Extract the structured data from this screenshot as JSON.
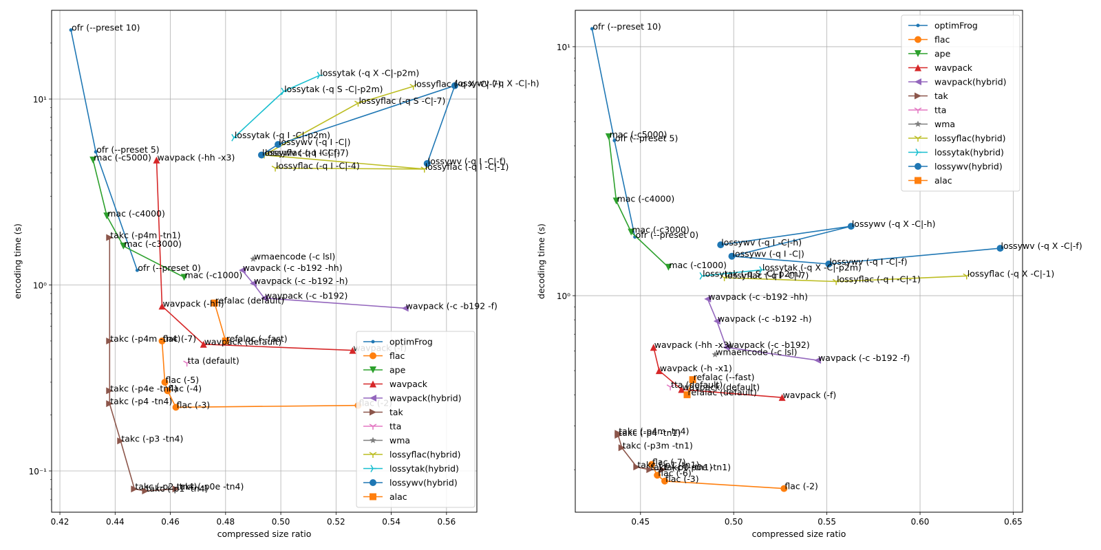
{
  "chart_data": [
    {
      "type": "line",
      "xlabel": "compressed size ratio",
      "ylabel": "encoding time (s)",
      "xscale": "linear",
      "yscale": "log",
      "xlim": [
        0.417,
        0.571
      ],
      "ylim": [
        0.06,
        30
      ],
      "xticks": [
        0.42,
        0.44,
        0.46,
        0.48,
        0.5,
        0.52,
        0.54,
        0.56
      ],
      "xtick_labels": [
        "0.42",
        "0.44",
        "0.46",
        "0.48",
        "0.50",
        "0.52",
        "0.54",
        "0.56"
      ],
      "yticks": [
        0.1,
        1,
        10
      ],
      "ytick_labels": [
        "10⁻¹",
        "10⁰",
        "10¹"
      ],
      "grid": true,
      "legend_position": "lower-right",
      "series": [
        {
          "name": "optimFrog",
          "color": "#1f77b4",
          "marker": "point",
          "points": [
            [
              0.424,
              23.5,
              "ofr (--preset 10)"
            ],
            [
              0.433,
              5.2,
              "ofr (--preset 5)"
            ],
            [
              0.448,
              1.2,
              "ofr (--preset 0)"
            ]
          ]
        },
        {
          "name": "flac",
          "color": "#ff7f0e",
          "marker": "circle",
          "points": [
            [
              0.457,
              0.5,
              "flac (-7)"
            ],
            [
              0.458,
              0.3,
              "flac (-5)"
            ],
            [
              0.459,
              0.27,
              "flac (-4)"
            ],
            [
              0.462,
              0.22,
              "flac (-3)"
            ],
            [
              0.528,
              0.225,
              "flac (-2)"
            ]
          ]
        },
        {
          "name": "ape",
          "color": "#2ca02c",
          "marker": "triangle-down",
          "points": [
            [
              0.432,
              4.7,
              "mac (-c5000)"
            ],
            [
              0.437,
              2.35,
              "mac (-c4000)"
            ],
            [
              0.443,
              1.62,
              "mac (-c3000)"
            ],
            [
              0.465,
              1.1,
              "mac (-c1000)"
            ]
          ]
        },
        {
          "name": "wavpack",
          "color": "#d62728",
          "marker": "triangle-up",
          "points": [
            [
              0.455,
              4.7,
              "wavpack (-hh -x3)"
            ],
            [
              0.457,
              0.77,
              "wavpack (-hh)"
            ],
            [
              0.472,
              0.48,
              "wavpack (default)"
            ],
            [
              0.526,
              0.445,
              "wavpack (-f)"
            ]
          ]
        },
        {
          "name": "wavpack(hybrid)",
          "color": "#9467bd",
          "marker": "triangle-left",
          "points": [
            [
              0.486,
              1.2,
              "wavpack (-c -b192 -hh)"
            ],
            [
              0.49,
              1.02,
              "wavpack (-c -b192 -h)"
            ],
            [
              0.494,
              0.85,
              "wavpack (-c -b192)"
            ],
            [
              0.545,
              0.75,
              "wavpack (-c -b192 -f)"
            ]
          ]
        },
        {
          "name": "tak",
          "color": "#8c564b",
          "marker": "triangle-right",
          "points": [
            [
              0.438,
              1.8,
              "takc (-p4m -tn1)"
            ],
            [
              0.438,
              0.5,
              "takc (-p4m -tn4)"
            ],
            [
              0.438,
              0.27,
              "takc (-p4e -tn4)"
            ],
            [
              0.438,
              0.23,
              "takc (-p4 -tn4)"
            ],
            [
              0.442,
              0.145,
              "takc (-p3 -tn4)"
            ],
            [
              0.447,
              0.08,
              "takc (-p2 -tn4)"
            ],
            [
              0.451,
              0.078,
              "takc (-p1 -tn4)"
            ],
            [
              0.462,
              0.08,
              "takc (-p0e -tn4)"
            ]
          ]
        },
        {
          "name": "tta",
          "color": "#e377c2",
          "marker": "tri-down",
          "points": [
            [
              0.466,
              0.38,
              "tta (default)"
            ]
          ]
        },
        {
          "name": "wma",
          "color": "#7f7f7f",
          "marker": "star",
          "points": [
            [
              0.49,
              1.38,
              "wmaencode (-c lsl)"
            ]
          ]
        },
        {
          "name": "lossyflac(hybrid)",
          "color": "#bcbd22",
          "marker": "tri-down",
          "points": [
            [
              0.498,
              4.25,
              "lossyflac (-q I -C|-4)"
            ],
            [
              0.552,
              4.2,
              "lossyflac (-q I -C|-1)"
            ],
            [
              0.494,
              5.0,
              "lossyflac (-q I -C|-7)"
            ],
            [
              0.528,
              9.5,
              "lossyflac (-q S -C|-7)"
            ],
            [
              0.548,
              11.7,
              "lossyflac (-q X -C|-7)"
            ]
          ]
        },
        {
          "name": "lossytak(hybrid)",
          "color": "#17becf",
          "marker": "tri-right",
          "points": [
            [
              0.483,
              6.2,
              "lossytak (-q I -C|-p2m)"
            ],
            [
              0.501,
              11.0,
              "lossytak (-q S -C|-p2m)"
            ],
            [
              0.514,
              13.4,
              "lossytak (-q X -C|-p2m)"
            ]
          ]
        },
        {
          "name": "lossywv(hybrid)",
          "color": "#1f77b4",
          "marker": "circle",
          "points": [
            [
              0.493,
              5.0,
              "lossywv (-q I -C|-f)"
            ],
            [
              0.499,
              5.7,
              "lossywv (-q I -C|)"
            ],
            [
              0.563,
              11.8,
              "lossywv (-q X -C|-h)"
            ],
            [
              0.553,
              4.5,
              "lossywv (-q I -C|-f)"
            ]
          ]
        },
        {
          "name": "alac",
          "color": "#ff7f0e",
          "marker": "square",
          "points": [
            [
              0.476,
              0.8,
              "refalac (default)"
            ],
            [
              0.48,
              0.5,
              "refalac (--fast)"
            ]
          ]
        }
      ]
    },
    {
      "type": "line",
      "xlabel": "compressed size ratio",
      "ylabel": "decoding time (s)",
      "xscale": "linear",
      "yscale": "log",
      "xlim": [
        0.415,
        0.655
      ],
      "ylim": [
        0.135,
        14
      ],
      "xticks": [
        0.45,
        0.5,
        0.55,
        0.6,
        0.65
      ],
      "xtick_labels": [
        "0.45",
        "0.50",
        "0.55",
        "0.60",
        "0.65"
      ],
      "yticks": [
        1,
        10
      ],
      "ytick_labels": [
        "10⁰",
        "10¹"
      ],
      "grid": true,
      "legend_position": "upper-right",
      "series": [
        {
          "name": "optimFrog",
          "color": "#1f77b4",
          "marker": "point",
          "points": [
            [
              0.424,
              11.8,
              "ofr (--preset 10)"
            ],
            [
              0.436,
              4.2,
              "ofr (--preset 5)"
            ],
            [
              0.447,
              1.72,
              "ofr (--preset 0)"
            ]
          ]
        },
        {
          "name": "flac",
          "color": "#ff7f0e",
          "marker": "circle",
          "points": [
            [
              0.456,
              0.21,
              "flac (-7)"
            ],
            [
              0.459,
              0.19,
              "flac (-6)"
            ],
            [
              0.463,
              0.18,
              "flac (-3)"
            ],
            [
              0.527,
              0.168,
              "flac (-2)"
            ]
          ]
        },
        {
          "name": "ape",
          "color": "#2ca02c",
          "marker": "triangle-down",
          "points": [
            [
              0.433,
              4.35,
              "mac (-c5000)"
            ],
            [
              0.437,
              2.4,
              "mac (-c4000)"
            ],
            [
              0.445,
              1.8,
              "mac (-c3000)"
            ],
            [
              0.465,
              1.3,
              "mac (-c1000)"
            ]
          ]
        },
        {
          "name": "wavpack",
          "color": "#d62728",
          "marker": "triangle-up",
          "points": [
            [
              0.457,
              0.62,
              "wavpack (-hh -x3)"
            ],
            [
              0.46,
              0.5,
              "wavpack (-h -x1)"
            ],
            [
              0.472,
              0.42,
              "wavpack (default)"
            ],
            [
              0.526,
              0.39,
              "wavpack (-f)"
            ]
          ]
        },
        {
          "name": "wavpack(hybrid)",
          "color": "#9467bd",
          "marker": "triangle-left",
          "points": [
            [
              0.486,
              0.97,
              "wavpack (-c -b192 -hh)"
            ],
            [
              0.491,
              0.79,
              "wavpack (-c -b192 -h)"
            ],
            [
              0.496,
              0.62,
              "wavpack (-c -b192)"
            ],
            [
              0.545,
              0.55,
              "wavpack (-c -b192 -f)"
            ]
          ]
        },
        {
          "name": "tak",
          "color": "#8c564b",
          "marker": "triangle-right",
          "points": [
            [
              0.438,
              0.28,
              "takc (-p4m -tn4)"
            ],
            [
              0.438,
              0.275,
              "takc (-p4 -tn1)"
            ],
            [
              0.44,
              0.245,
              "takc (-p3m -tn1)"
            ],
            [
              0.448,
              0.205,
              "takc (-p1 -tn1)"
            ],
            [
              0.455,
              0.2,
              "takc (-p0 -tn1)"
            ],
            [
              0.462,
              0.2,
              "takc (-p0e -tn1)"
            ]
          ]
        },
        {
          "name": "tta",
          "color": "#e377c2",
          "marker": "tri-down",
          "points": [
            [
              0.466,
              0.43,
              "tta (default)"
            ]
          ]
        },
        {
          "name": "wma",
          "color": "#7f7f7f",
          "marker": "star",
          "points": [
            [
              0.49,
              0.58,
              "wmaencode (-c lsl)"
            ]
          ]
        },
        {
          "name": "lossyflac(hybrid)",
          "color": "#bcbd22",
          "marker": "tri-down",
          "points": [
            [
              0.495,
              1.18,
              "lossyflac (-q I -C|-7)"
            ],
            [
              0.555,
              1.14,
              "lossyflac (-q I -C|-1)"
            ],
            [
              0.625,
              1.2,
              "lossyflac (-q X -C|-1)"
            ]
          ]
        },
        {
          "name": "lossytak(hybrid)",
          "color": "#17becf",
          "marker": "tri-right",
          "points": [
            [
              0.483,
              1.2,
              "lossytak (-q S -C|-p2m)"
            ],
            [
              0.515,
              1.27,
              "lossytak (-q X -C|-p2m)"
            ]
          ]
        },
        {
          "name": "lossywv(hybrid)",
          "color": "#1f77b4",
          "marker": "circle",
          "points": [
            [
              0.493,
              1.6,
              "lossywv (-q I -C|-h)"
            ],
            [
              0.563,
              1.9,
              "lossywv (-q X -C|-h)"
            ],
            [
              0.499,
              1.44,
              "lossywv (-q I -C|)"
            ],
            [
              0.551,
              1.34,
              "lossywv (-q I -C|-f)"
            ],
            [
              0.643,
              1.55,
              "lossywv (-q X -C|-f)"
            ]
          ]
        },
        {
          "name": "alac",
          "color": "#ff7f0e",
          "marker": "square",
          "points": [
            [
              0.475,
              0.4,
              "refalac (default)"
            ],
            [
              0.478,
              0.46,
              "refalac (--fast)"
            ]
          ]
        }
      ]
    }
  ]
}
